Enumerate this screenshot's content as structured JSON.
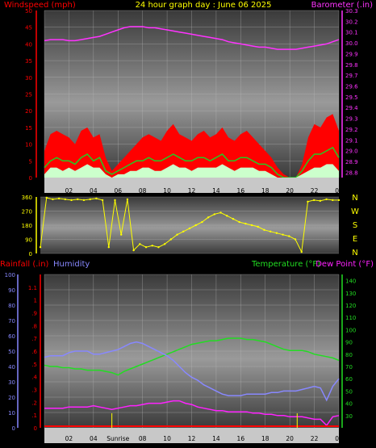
{
  "colors": {
    "wind": "#ff0000",
    "gust": "#22cc22",
    "windFill": "#ccffcc",
    "barometer": "#ff33ff",
    "direction": "#ffff00",
    "rain": "#ff0000",
    "humidity": "#8888ff",
    "temperature": "#22dd22",
    "dewpoint": "#ff22ff",
    "sunline": "#ffff00"
  },
  "chart_data": [
    {
      "type": "line",
      "title": "24 hour graph day : June 06 2025",
      "ylabel_left": "Windspeed (mph)",
      "ylabel_right": "Barometer (.in)",
      "x_ticks": [
        "02",
        "04",
        "06",
        "08",
        "10",
        "12",
        "14",
        "16",
        "18",
        "20",
        "22",
        "00"
      ],
      "x": [
        0,
        0.5,
        1,
        1.5,
        2,
        2.5,
        3,
        3.5,
        4,
        4.5,
        5,
        5.5,
        6,
        6.5,
        7,
        7.5,
        8,
        8.5,
        9,
        9.5,
        10,
        10.5,
        11,
        11.5,
        12,
        12.5,
        13,
        13.5,
        14,
        14.5,
        15,
        15.5,
        16,
        16.5,
        17,
        17.5,
        18,
        18.5,
        19,
        19.5,
        20,
        20.5,
        21,
        21.5,
        22,
        22.5,
        23,
        23.5,
        24
      ],
      "xlim": [
        0,
        24
      ],
      "wind_ylim": [
        0,
        50
      ],
      "wind_ticks": [
        0,
        5,
        10,
        15,
        20,
        25,
        30,
        35,
        40,
        45,
        50
      ],
      "baro_ylim": [
        28.75,
        30.3
      ],
      "baro_ticks": [
        28.8,
        28.9,
        29.0,
        29.1,
        29.2,
        29.3,
        29.4,
        29.5,
        29.6,
        29.7,
        29.8,
        29.9,
        30.0,
        30.1,
        30.2,
        30.3
      ],
      "series": [
        {
          "key": "gust",
          "values": [
            8,
            13,
            14,
            13,
            12,
            10,
            14,
            15,
            12,
            13,
            6,
            2,
            4,
            6,
            8,
            10,
            12,
            13,
            12,
            11,
            14,
            16,
            13,
            12,
            11,
            13,
            14,
            12,
            13,
            15,
            12,
            11,
            13,
            14,
            12,
            10,
            8,
            6,
            3,
            1,
            0,
            0,
            4,
            12,
            16,
            15,
            18,
            19,
            14
          ]
        },
        {
          "key": "avg",
          "values": [
            3,
            5,
            6,
            5,
            5,
            4,
            6,
            7,
            5,
            6,
            2,
            1,
            2,
            3,
            4,
            5,
            5,
            6,
            5,
            5,
            6,
            7,
            6,
            5,
            5,
            6,
            6,
            5,
            6,
            7,
            5,
            5,
            6,
            6,
            5,
            4,
            4,
            3,
            1,
            0,
            0,
            0,
            2,
            5,
            7,
            7,
            8,
            9,
            6
          ]
        },
        {
          "key": "wind",
          "values": [
            1,
            3,
            3,
            2,
            3,
            2,
            3,
            4,
            3,
            3,
            1,
            0,
            1,
            1,
            2,
            2,
            3,
            3,
            2,
            2,
            3,
            4,
            3,
            3,
            2,
            3,
            3,
            3,
            3,
            4,
            3,
            2,
            3,
            3,
            3,
            2,
            2,
            1,
            0,
            0,
            0,
            0,
            1,
            2,
            3,
            3,
            4,
            4,
            2
          ]
        },
        {
          "key": "barometer",
          "values": [
            30.02,
            30.03,
            30.03,
            30.03,
            30.02,
            30.02,
            30.03,
            30.04,
            30.05,
            30.06,
            30.08,
            30.1,
            30.12,
            30.14,
            30.15,
            30.15,
            30.15,
            30.14,
            30.14,
            30.13,
            30.12,
            30.11,
            30.1,
            30.09,
            30.08,
            30.07,
            30.06,
            30.05,
            30.04,
            30.03,
            30.01,
            30.0,
            29.99,
            29.98,
            29.97,
            29.96,
            29.96,
            29.95,
            29.94,
            29.94,
            29.94,
            29.94,
            29.95,
            29.96,
            29.97,
            29.98,
            29.99,
            30.01,
            30.03
          ]
        }
      ]
    },
    {
      "type": "scatter",
      "ylabel_right": [
        "N",
        "W",
        "S",
        "E",
        "N"
      ],
      "ylim": [
        0,
        360
      ],
      "y_ticks": [
        0,
        90,
        180,
        270,
        360
      ],
      "x_ticks": [
        "02",
        "04",
        "06",
        "08",
        "10",
        "12",
        "14",
        "16",
        "18",
        "20",
        "22",
        "00"
      ],
      "x": [
        0,
        0.5,
        1,
        1.5,
        2,
        2.5,
        3,
        3.5,
        4,
        4.5,
        5,
        5.5,
        6,
        6.5,
        7,
        7.5,
        8,
        8.5,
        9,
        9.5,
        10,
        10.5,
        11,
        11.5,
        12,
        12.5,
        13,
        13.5,
        14,
        14.5,
        15,
        15.5,
        16,
        16.5,
        17,
        17.5,
        18,
        18.5,
        19,
        19.5,
        20,
        20.5,
        21,
        21.5,
        22,
        22.5,
        23,
        23.5,
        24
      ],
      "values": [
        40,
        355,
        345,
        350,
        345,
        340,
        345,
        340,
        345,
        350,
        340,
        40,
        340,
        120,
        345,
        20,
        60,
        40,
        50,
        40,
        60,
        90,
        120,
        140,
        160,
        180,
        200,
        230,
        250,
        260,
        240,
        220,
        200,
        190,
        180,
        170,
        150,
        140,
        130,
        120,
        110,
        90,
        10,
        330,
        340,
        335,
        345,
        340,
        340
      ]
    },
    {
      "type": "line",
      "ylabel_left_1": "Rainfall (.in)",
      "ylabel_left_2": "Humidity",
      "ylabel_right_1": "Temperature (°F)",
      "ylabel_right_2": "Dew Point (°F)",
      "x_ticks": [
        "02",
        "04",
        "Sunrise",
        "08",
        "10",
        "12",
        "14",
        "16",
        "18",
        "20",
        "22",
        "00"
      ],
      "x": [
        0,
        0.5,
        1,
        1.5,
        2,
        2.5,
        3,
        3.5,
        4,
        4.5,
        5,
        5.5,
        6,
        6.5,
        7,
        7.5,
        8,
        8.5,
        9,
        9.5,
        10,
        10.5,
        11,
        11.5,
        12,
        12.5,
        13,
        13.5,
        14,
        14.5,
        15,
        15.5,
        16,
        16.5,
        17,
        17.5,
        18,
        18.5,
        19,
        19.5,
        20,
        20.5,
        21,
        21.5,
        22,
        22.5,
        23,
        23.5,
        24
      ],
      "rain_ylim": [
        0,
        1.2
      ],
      "rain_ticks": [
        0,
        0.1,
        0.2,
        0.3,
        0.4,
        0.5,
        0.6,
        0.7,
        0.8,
        0.9,
        1,
        1.1
      ],
      "humidity_ylim": [
        0,
        100
      ],
      "humidity_ticks": [
        0,
        10,
        20,
        30,
        40,
        50,
        60,
        70,
        80,
        90,
        100
      ],
      "temp_ylim": [
        20,
        145
      ],
      "temp_ticks": [
        30,
        40,
        50,
        60,
        70,
        80,
        90,
        100,
        110,
        120,
        130,
        140
      ],
      "sunrise_x": 5.5,
      "sunset_x": 20.6,
      "series": [
        {
          "key": "humidity",
          "values": [
            46,
            47,
            47,
            47,
            49,
            50,
            50,
            50,
            48,
            48,
            49,
            50,
            51,
            53,
            55,
            56,
            55,
            53,
            51,
            49,
            47,
            44,
            40,
            36,
            33,
            31,
            28,
            26,
            24,
            22,
            21,
            21,
            21,
            22,
            22,
            22,
            22,
            23,
            23,
            24,
            24,
            24,
            25,
            26,
            27,
            26,
            18,
            27,
            32
          ]
        },
        {
          "key": "temperature",
          "values": [
            71,
            70,
            70,
            69,
            69,
            68,
            68,
            67,
            67,
            67,
            66,
            65,
            63,
            66,
            68,
            70,
            72,
            74,
            76,
            78,
            80,
            82,
            84,
            86,
            88,
            89,
            90,
            91,
            91,
            92,
            93,
            93,
            93,
            92,
            92,
            91,
            90,
            88,
            86,
            84,
            83,
            83,
            83,
            82,
            80,
            79,
            78,
            77,
            75
          ]
        },
        {
          "key": "dewpoint",
          "values": [
            36,
            36,
            36,
            36,
            37,
            37,
            37,
            37,
            38,
            37,
            36,
            35,
            36,
            37,
            38,
            38,
            39,
            40,
            40,
            40,
            41,
            42,
            42,
            40,
            39,
            37,
            36,
            35,
            34,
            34,
            33,
            33,
            33,
            33,
            32,
            32,
            31,
            31,
            30,
            30,
            29,
            29,
            29,
            28,
            27,
            27,
            22,
            29,
            30
          ]
        }
      ]
    }
  ]
}
